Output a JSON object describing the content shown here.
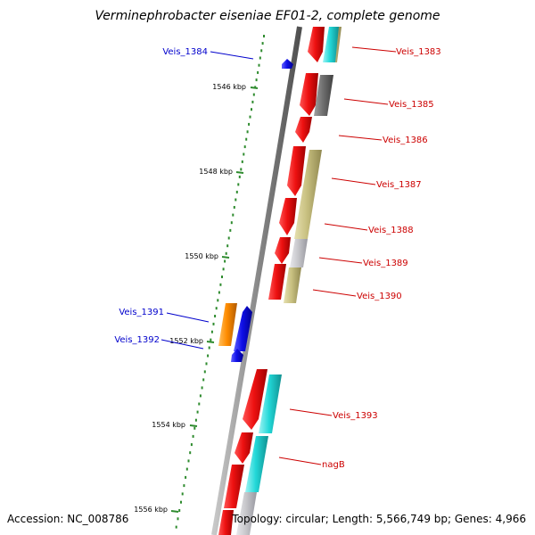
{
  "title": "Verminephrobacter eiseniae EF01-2, complete genome",
  "accession": "Accession: NC_008786",
  "topology": "Topology: circular; Length: 5,566,749 bp; Genes: 4,966",
  "colors": {
    "backbone": "#8a8a8a",
    "tick": "#2e8b2e",
    "right_label": "#cc0000",
    "left_label": "#0000cc",
    "cds_red": "#ee1111",
    "cyan": "#22d8d8",
    "olive": "#c8c080",
    "gray_dark": "#707070",
    "gray_light": "#c8c8cc",
    "orange": "#ff8c00",
    "blue": "#1010e8"
  },
  "ticks": [
    {
      "label": "1546 kbp"
    },
    {
      "label": "1548 kbp"
    },
    {
      "label": "1550 kbp"
    },
    {
      "label": "1552 kbp"
    },
    {
      "label": "1554 kbp"
    },
    {
      "label": "1556 kbp"
    }
  ],
  "right_labels": [
    {
      "name": "Veis_1383"
    },
    {
      "name": "Veis_1385"
    },
    {
      "name": "Veis_1386"
    },
    {
      "name": "Veis_1387"
    },
    {
      "name": "Veis_1388"
    },
    {
      "name": "Veis_1389"
    },
    {
      "name": "Veis_1390"
    },
    {
      "name": "Veis_1393"
    },
    {
      "name": "nagB"
    }
  ],
  "left_labels": [
    {
      "name": "Veis_1384"
    },
    {
      "name": "Veis_1391"
    },
    {
      "name": "Veis_1392"
    }
  ]
}
